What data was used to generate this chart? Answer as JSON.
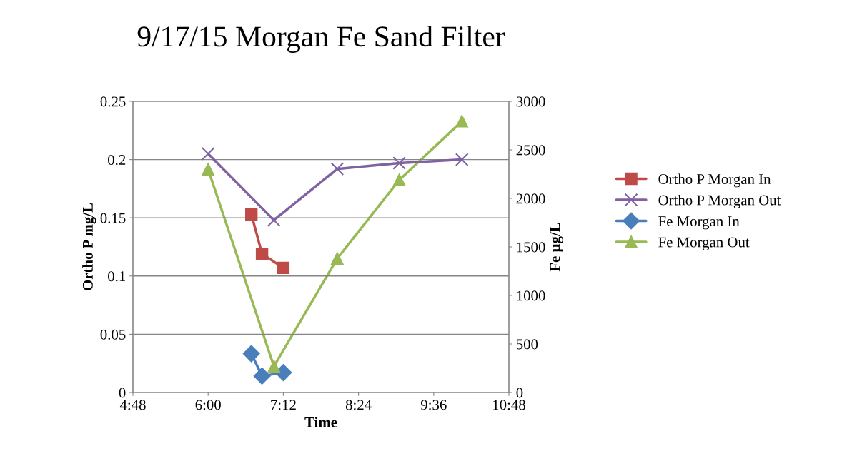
{
  "chart_data": {
    "type": "line",
    "title": "9/17/15 Morgan Fe Sand Filter",
    "xlabel": "Time",
    "ylabel": "Ortho P mg/L",
    "y2label": "Fe µg/L",
    "xlim": [
      4.8,
      10.8
    ],
    "xticks": [
      {
        "value": 4.8,
        "label": "4:48"
      },
      {
        "value": 6.0,
        "label": "6:00"
      },
      {
        "value": 7.2,
        "label": "7:12"
      },
      {
        "value": 8.4,
        "label": "8:24"
      },
      {
        "value": 9.6,
        "label": "9:36"
      },
      {
        "value": 10.8,
        "label": "10:48"
      }
    ],
    "ylim": [
      0,
      0.25
    ],
    "yticks": [
      0,
      0.05,
      0.1,
      0.15,
      0.2,
      0.25
    ],
    "y2lim": [
      0,
      3000
    ],
    "y2ticks": [
      0,
      500,
      1000,
      1500,
      2000,
      2500,
      3000
    ],
    "grid": "y",
    "legend": "right",
    "line_style": "solid",
    "series": [
      {
        "name": "Ortho P Morgan In",
        "color": "#be4b48",
        "marker": "square",
        "x": [
          6.69,
          6.86,
          7.2
        ],
        "values": [
          0.153,
          0.119,
          0.107
        ]
      },
      {
        "name": "Ortho P Morgan Out",
        "color": "#7e62a1",
        "marker": "cross",
        "x": [
          6.0,
          7.05,
          8.06,
          9.05,
          10.05
        ],
        "values": [
          0.205,
          0.148,
          0.192,
          0.197,
          0.2
        ]
      },
      {
        "name": "Fe Morgan In",
        "color": "#4a7ebb",
        "marker": "diamond",
        "axis": "y2",
        "x": [
          6.69,
          6.86,
          7.2
        ],
        "values": [
          400,
          170,
          205
        ]
      },
      {
        "name": "Fe Morgan Out",
        "color": "#98b954",
        "marker": "triangle",
        "axis": "y2",
        "x": [
          6.0,
          7.05,
          8.06,
          9.05,
          10.05
        ],
        "values": [
          2300,
          270,
          1380,
          2190,
          2795
        ]
      }
    ]
  }
}
